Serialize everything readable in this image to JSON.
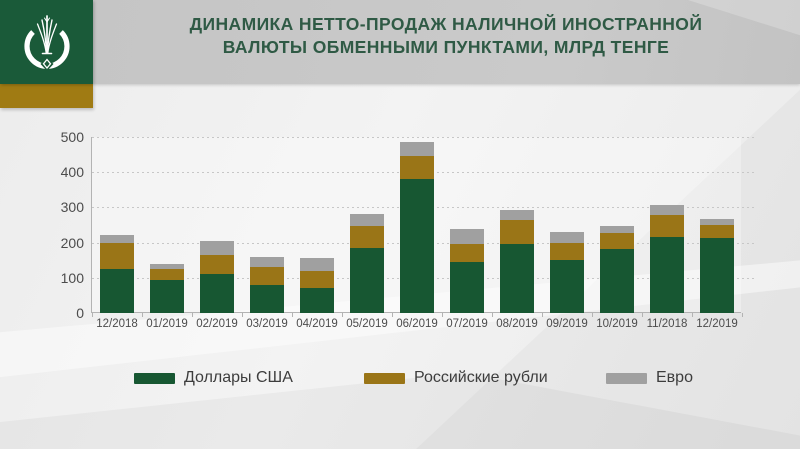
{
  "header": {
    "title_line1": "ДИНАМИКА НЕТТО-ПРОДАЖ НАЛИЧНОЙ ИНОСТРАННОЙ",
    "title_line2": "ВАЛЮТЫ ОБМЕННЫМИ ПУНКТАМИ, МЛРД ТЕНГЕ",
    "logo_name": "national-bank-kazakhstan-emblem"
  },
  "colors": {
    "header_band": "#c6c6c6",
    "title_text": "#2f5a45",
    "logo_green": "#1a5a39",
    "logo_gold": "#a07b13",
    "usd_green": "#175732",
    "rub_gold": "#9a7517",
    "eur_gray": "#a0a0a0",
    "axis_text": "#4c4c4c",
    "grid": "#c7c7c7",
    "background": "#efefef"
  },
  "chart_data": {
    "type": "bar",
    "stacked": true,
    "title": "ДИНАМИКА НЕТТО-ПРОДАЖ НАЛИЧНОЙ ИНОСТРАННОЙ ВАЛЮТЫ ОБМЕННЫМИ ПУНКТАМИ, МЛРД ТЕНГЕ",
    "units": "млрд тенге",
    "categories": [
      "12/2018",
      "01/2019",
      "02/2019",
      "03/2019",
      "04/2019",
      "05/2019",
      "06/2019",
      "07/2019",
      "08/2019",
      "09/2019",
      "10/2019",
      "11/2018",
      "12/2019"
    ],
    "series": [
      {
        "name": "Доллары США",
        "color": "#175732",
        "values": [
          125,
          95,
          110,
          80,
          70,
          185,
          380,
          145,
          195,
          150,
          183,
          215,
          212
        ]
      },
      {
        "name": "Российские рубли",
        "color": "#9a7517",
        "values": [
          75,
          30,
          55,
          50,
          50,
          63,
          65,
          50,
          70,
          50,
          45,
          63,
          38
        ]
      },
      {
        "name": "Евро",
        "color": "#a0a0a0",
        "values": [
          22,
          15,
          40,
          30,
          35,
          32,
          40,
          45,
          27,
          30,
          19,
          30,
          18
        ]
      }
    ],
    "stack_totals": [
      222,
      140,
      205,
      160,
      155,
      280,
      485,
      240,
      292,
      230,
      247,
      308,
      268
    ],
    "xlabel": "",
    "ylabel": "",
    "ylim": [
      0,
      500
    ],
    "yticks": [
      0,
      100,
      200,
      300,
      400,
      500
    ],
    "grid": "horizontal-dotted",
    "legend_position": "bottom"
  }
}
